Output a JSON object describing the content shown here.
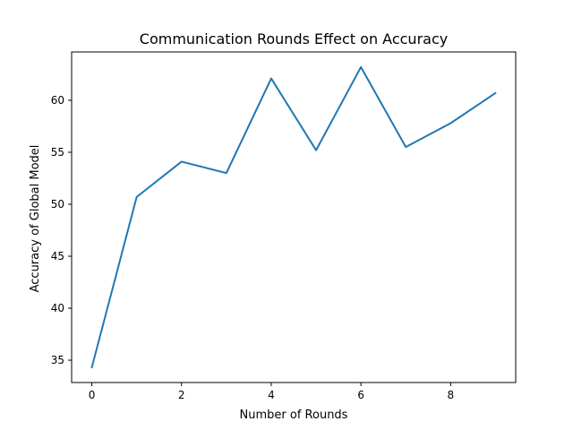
{
  "chart_data": {
    "type": "line",
    "title": "Communication Rounds Effect on Accuracy",
    "xlabel": "Number of Rounds",
    "ylabel": "Accuracy of Global Model",
    "x": [
      0,
      1,
      2,
      3,
      4,
      5,
      6,
      7,
      8,
      9
    ],
    "series": [
      {
        "values": [
          34.3,
          50.7,
          54.1,
          53.0,
          62.1,
          55.2,
          63.2,
          55.5,
          57.8,
          60.7
        ],
        "color": "#1f77b4"
      }
    ],
    "xlim": [
      -0.45,
      9.45
    ],
    "ylim": [
      32.85,
      64.65
    ],
    "xticks": [
      0,
      2,
      4,
      6,
      8
    ],
    "yticks": [
      35,
      40,
      45,
      50,
      55,
      60
    ],
    "grid": false
  }
}
